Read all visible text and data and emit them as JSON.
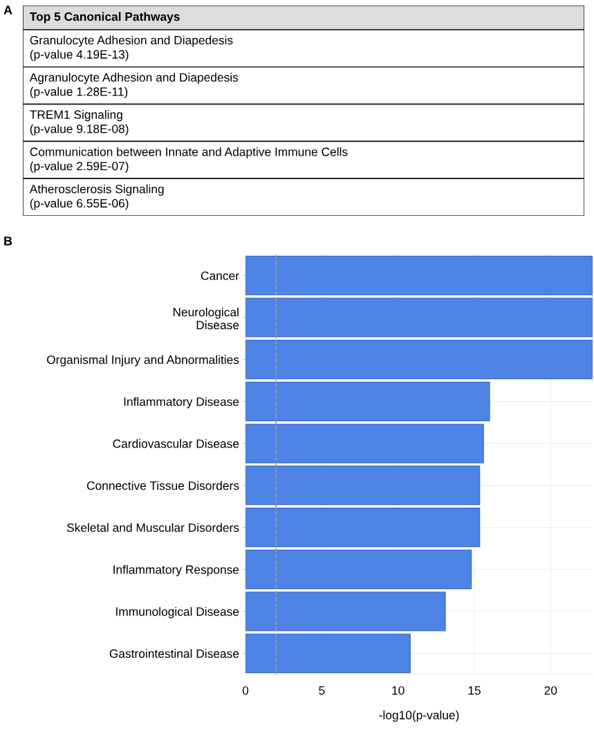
{
  "chart_data": [
    {
      "type": "other",
      "title": "Top 5 Canonical Pathways",
      "annotations": [
        "A",
        "Granulocyte Adhesion and Diapedesis\n(p-value 4.19E-13)",
        "Agranulocyte Adhesion and Diapedesis\n(p-value 1.28E-11)",
        "TREM1 Signaling\n(p-value 9.18E-08)",
        "Communication between Innate and Adaptive Immune Cells\n(p-value 2.59E-07)",
        "Atherosclerosis Signaling\n(p-value 6.55E-06)"
      ]
    },
    {
      "type": "bar",
      "orientation": "horizontal",
      "xlabel": "-log10(p-value)",
      "annotations": [
        "B"
      ],
      "categories": [
        "Cancer",
        "Neurological\nDisease",
        "Organismal Injury and Abnormalities",
        "Inflammatory Disease",
        "Cardiovascular Disease",
        "Connective Tissue Disorders",
        "Skeletal and Muscular Disorders",
        "Inflammatory Response",
        "Immunological Disease",
        "Gastrointestinal Disease"
      ],
      "values": [
        22.75,
        22.75,
        22.75,
        16.0,
        15.6,
        15.35,
        15.35,
        14.8,
        13.1,
        10.8
      ],
      "color": "#4e84e6",
      "xlim": [
        0,
        22.75
      ],
      "xticks": [
        0,
        5,
        10,
        15,
        20
      ],
      "ref_lines": [
        {
          "axis": "x",
          "value": 2.0,
          "label": null,
          "color": "#9a9a9a",
          "line_style": "dashed"
        }
      ],
      "grid": true
    }
  ]
}
